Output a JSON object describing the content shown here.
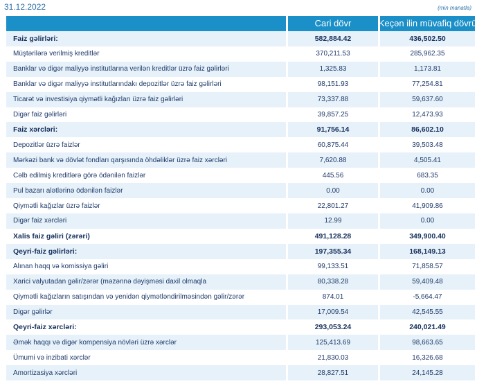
{
  "date": "31.12.2022",
  "unit": "(min manatla)",
  "table": {
    "headers": {
      "label": "",
      "current": "Cari dövr",
      "previous": "Keçən ilin müvafiq dövrü"
    },
    "rows": [
      {
        "label": "Faiz gəlirləri:",
        "current": "582,884.42",
        "previous": "436,502.50",
        "bold": true
      },
      {
        "label": "Müştərilərə verilmiş kreditlər",
        "current": "370,211.53",
        "previous": "285,962.35",
        "bold": false
      },
      {
        "label": "Banklar və digər maliyyə institutlarına verilən kreditlər üzrə faiz gəlirləri",
        "current": "1,325.83",
        "previous": "1,173.81",
        "bold": false
      },
      {
        "label": "Banklar və digər maliyyə institutlarındakı depozitlər üzrə faiz gəlirləri",
        "current": "98,151.93",
        "previous": "77,254.81",
        "bold": false
      },
      {
        "label": "Ticarət və investisiya qiymətli kağızları üzrə faiz gəlirləri",
        "current": "73,337.88",
        "previous": "59,637.60",
        "bold": false
      },
      {
        "label": "Digər faiz gəlirləri",
        "current": "39,857.25",
        "previous": "12,473.93",
        "bold": false
      },
      {
        "label": "Faiz xərcləri:",
        "current": "91,756.14",
        "previous": "86,602.10",
        "bold": true
      },
      {
        "label": "Depozitlər üzrə faizlər",
        "current": "60,875.44",
        "previous": "39,503.48",
        "bold": false
      },
      {
        "label": "Mərkəzi bank və dövlət fondları qarşısında öhdəliklər üzrə faiz xərcləri",
        "current": "7,620.88",
        "previous": "4,505.41",
        "bold": false
      },
      {
        "label": "Cəlb edilmiş kreditlərə görə ödənilən faizlər",
        "current": "445.56",
        "previous": "683.35",
        "bold": false
      },
      {
        "label": "Pul bazarı alətlərinə ödənilən faizlər",
        "current": "0.00",
        "previous": "0.00",
        "bold": false
      },
      {
        "label": "Qiymətli kağızlar üzrə faizlər",
        "current": "22,801.27",
        "previous": "41,909.86",
        "bold": false
      },
      {
        "label": "Digər faiz xərcləri",
        "current": "12.99",
        "previous": "0.00",
        "bold": false
      },
      {
        "label": "Xalis faiz gəliri (zərəri)",
        "current": "491,128.28",
        "previous": "349,900.40",
        "bold": true
      },
      {
        "label": "Qeyri-faiz gəlirləri:",
        "current": "197,355.34",
        "previous": "168,149.13",
        "bold": true
      },
      {
        "label": "Alınan haqq və komissiya gəliri",
        "current": "99,133.51",
        "previous": "71,858.57",
        "bold": false
      },
      {
        "label": "Xarici valyutadan gəlir/zərər (məzənnə dəyişməsi daxil olmaqla",
        "current": "80,338.28",
        "previous": "59,409.48",
        "bold": false
      },
      {
        "label": "Qiymətli kağızların satışından və yenidən qiymətləndirilməsindən gəlir/zərər",
        "current": "874.01",
        "previous": "-5,664.47",
        "bold": false
      },
      {
        "label": "Digər gəlirlər",
        "current": "17,009.54",
        "previous": "42,545.55",
        "bold": false
      },
      {
        "label": "Qeyri-faiz xərcləri:",
        "current": "293,053.24",
        "previous": "240,021.49",
        "bold": true
      },
      {
        "label": "Əmək haqqı və digər kompensiya növləri üzrə xərclər",
        "current": "125,413.69",
        "previous": "98,663.65",
        "bold": false
      },
      {
        "label": "Ümumi və inzibati xərclər",
        "current": "21,830.03",
        "previous": "16,326.68",
        "bold": false
      },
      {
        "label": "Amortizasiya xərcləri",
        "current": "28,827.51",
        "previous": "24,145.28",
        "bold": false
      }
    ]
  }
}
